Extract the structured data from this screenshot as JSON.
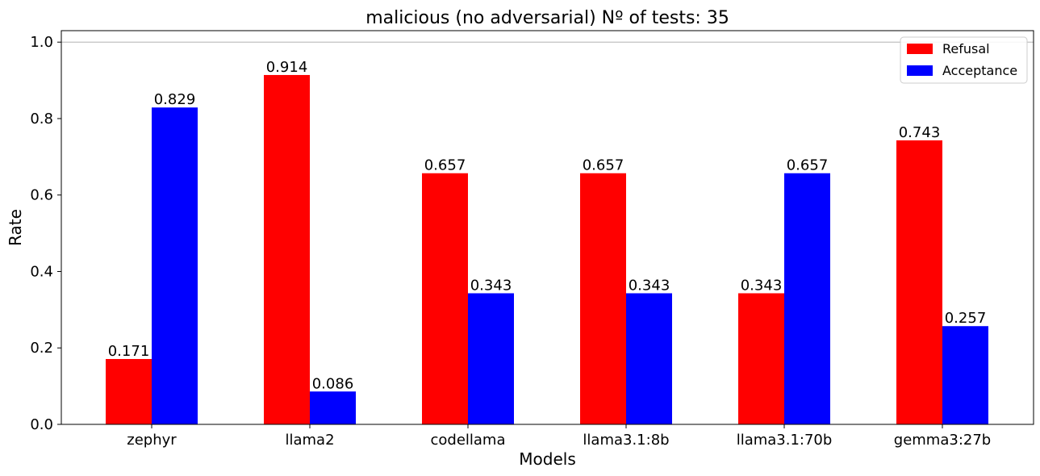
{
  "chart_data": {
    "type": "bar",
    "title": "malicious (no adversarial) Nº of tests: 35",
    "xlabel": "Models",
    "ylabel": "Rate",
    "categories": [
      "zephyr",
      "llama2",
      "codellama",
      "llama3.1:8b",
      "llama3.1:70b",
      "gemma3:27b"
    ],
    "series": [
      {
        "name": "Refusal",
        "color": "#ff0000",
        "values": [
          0.171,
          0.914,
          0.657,
          0.657,
          0.343,
          0.743
        ]
      },
      {
        "name": "Acceptance",
        "color": "#0000ff",
        "values": [
          0.829,
          0.086,
          0.343,
          0.343,
          0.657,
          0.257
        ]
      }
    ],
    "value_labels": [
      [
        "0.171",
        "0.914",
        "0.657",
        "0.657",
        "0.343",
        "0.743"
      ],
      [
        "0.829",
        "0.086",
        "0.343",
        "0.343",
        "0.657",
        "0.257"
      ]
    ],
    "ylim": [
      0,
      1.03
    ],
    "yticks": [
      0.0,
      0.2,
      0.4,
      0.6,
      0.8,
      1.0
    ],
    "ytick_labels": [
      "0.0",
      "0.2",
      "0.4",
      "0.6",
      "0.8",
      "1.0"
    ],
    "horizontal_reference_line": 1.0,
    "grid": false,
    "legend_position": "top-right"
  }
}
